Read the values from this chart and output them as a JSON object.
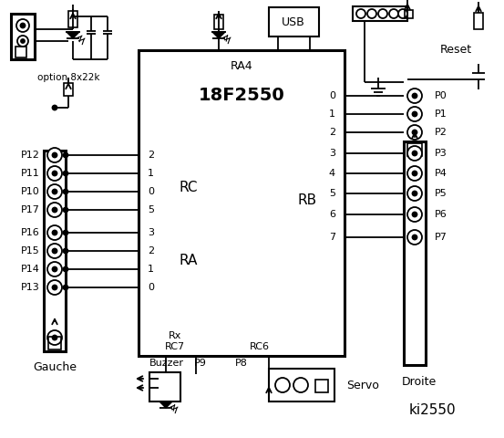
{
  "title": "ki2550",
  "bg_color": "#ffffff",
  "chip_label_top": "RA4",
  "chip_label_main": "18F2550",
  "rc_label": "RC",
  "ra_label": "RA",
  "rb_label": "RB",
  "left_pins_labels": [
    "P12",
    "P11",
    "P10",
    "P17",
    "P16",
    "P15",
    "P14",
    "P13"
  ],
  "left_pin_numbers": [
    "2",
    "1",
    "0",
    "5",
    "3",
    "2",
    "1",
    "0"
  ],
  "right_pin_numbers": [
    "0",
    "1",
    "2",
    "3",
    "4",
    "5",
    "6",
    "7"
  ],
  "right_pins_labels": [
    "P0",
    "P1",
    "P2",
    "P3",
    "P4",
    "P5",
    "P6",
    "P7"
  ],
  "rx_label": "Rx",
  "rc7_label": "RC7",
  "rc6_label": "RC6",
  "gauche_label": "Gauche",
  "droite_label": "Droite",
  "option_label": "option 8x22k",
  "usb_label": "USB",
  "reset_label": "Reset",
  "buzzer_label": "Buzzer",
  "p9_label": "P9",
  "p8_label": "P8",
  "servo_label": "Servo"
}
